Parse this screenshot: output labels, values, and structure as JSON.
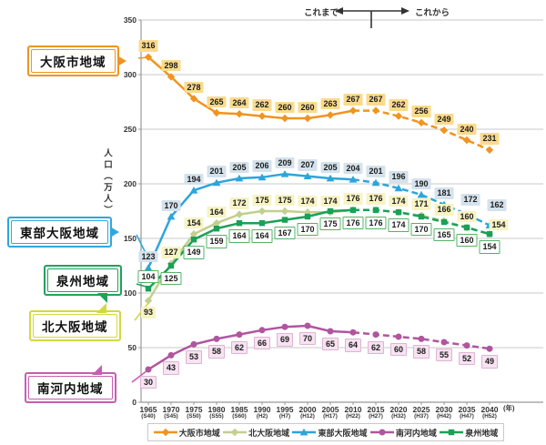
{
  "annotation": {
    "past": "これまで",
    "future": "これから"
  },
  "y_axis": {
    "title": "人口（万人）",
    "ticks": [
      350,
      300,
      250,
      200,
      150,
      100,
      50,
      0
    ]
  },
  "x_axis": {
    "unit": "(年)",
    "labels": [
      {
        "year": "1965",
        "era": "(S40)"
      },
      {
        "year": "1970",
        "era": "(S45)"
      },
      {
        "year": "1975",
        "era": "(S50)"
      },
      {
        "year": "1980",
        "era": "(S55)"
      },
      {
        "year": "1985",
        "era": "(S60)"
      },
      {
        "year": "1990",
        "era": "(H2)"
      },
      {
        "year": "1995",
        "era": "(H7)"
      },
      {
        "year": "2000",
        "era": "(H12)"
      },
      {
        "year": "2005",
        "era": "(H17)"
      },
      {
        "year": "2010",
        "era": "(H22)"
      },
      {
        "year": "2015",
        "era": "(H27)"
      },
      {
        "year": "2020",
        "era": "(H32)"
      },
      {
        "year": "2025",
        "era": "(H37)"
      },
      {
        "year": "2030",
        "era": "(H42)"
      },
      {
        "year": "2035",
        "era": "(H47)"
      },
      {
        "year": "2040",
        "era": "(H52)"
      }
    ]
  },
  "callouts": [
    {
      "id": "osaka-city",
      "label": "大阪市地域",
      "color": "#F0941F"
    },
    {
      "id": "tobu-osaka",
      "label": "東部大阪地域",
      "color": "#2FA8DF"
    },
    {
      "id": "senshu",
      "label": "泉州地域",
      "color": "#1FA35C"
    },
    {
      "id": "kita-osaka",
      "label": "北大阪地域",
      "color": "#D4D83F"
    },
    {
      "id": "minami-kawachi",
      "label": "南河内地域",
      "color": "#C55FB0"
    }
  ],
  "chart_data": {
    "type": "line",
    "title": "",
    "x": [
      1965,
      1970,
      1975,
      1980,
      1985,
      1990,
      1995,
      2000,
      2005,
      2010,
      2015,
      2020,
      2025,
      2030,
      2035,
      2040
    ],
    "ylim": [
      0,
      350
    ],
    "grid": true,
    "legend_position": "bottom",
    "solid_until_year": 2010,
    "series": [
      {
        "id": "osaka-city",
        "name": "大阪市地域",
        "color": "#F0941F",
        "marker": "diamond",
        "label_bg": "#FBDA8C",
        "label_side": "above",
        "values": [
          316,
          298,
          278,
          265,
          264,
          262,
          260,
          260,
          263,
          267,
          267,
          262,
          256,
          249,
          240,
          231
        ]
      },
      {
        "id": "kita-osaka",
        "name": "北大阪地域",
        "color": "#C2CF8E",
        "marker": "diamond",
        "label_bg": "#F7F3C3",
        "label_side": "above",
        "label_side_overrides": {
          "0": "below"
        },
        "label_offsets": {
          "15": [
            10,
            2
          ]
        },
        "values": [
          93,
          127,
          154,
          164,
          172,
          175,
          175,
          174,
          174,
          176,
          176,
          174,
          171,
          166,
          160,
          154
        ]
      },
      {
        "id": "tobu-osaka",
        "name": "東部大阪地域",
        "color": "#2CA5DC",
        "marker": "triangle",
        "label_bg": "#D4E2EC",
        "label_side": "above",
        "label_offsets": {
          "14": [
            4,
            -4
          ],
          "15": [
            8,
            -10
          ]
        },
        "values": [
          123,
          170,
          194,
          201,
          205,
          206,
          209,
          207,
          205,
          204,
          201,
          196,
          190,
          181,
          172,
          162
        ]
      },
      {
        "id": "minami-kawachi",
        "name": "南河内地域",
        "color": "#B1559F",
        "marker": "circle",
        "label_bg": "#F7E3F1",
        "label_border": "#DFB3D3",
        "label_side": "below",
        "values": [
          30,
          43,
          53,
          58,
          62,
          66,
          69,
          70,
          65,
          64,
          62,
          60,
          58,
          55,
          52,
          49
        ]
      },
      {
        "id": "senshu",
        "name": "泉州地域",
        "color": "#1AA157",
        "marker": "square",
        "label_bg": "#FFFFFF",
        "label_border": "#55B266",
        "label_side": "below",
        "label_side_overrides": {
          "0": "above"
        },
        "values": [
          104,
          125,
          149,
          159,
          164,
          164,
          167,
          170,
          175,
          176,
          176,
          174,
          170,
          165,
          160,
          154
        ]
      }
    ]
  }
}
